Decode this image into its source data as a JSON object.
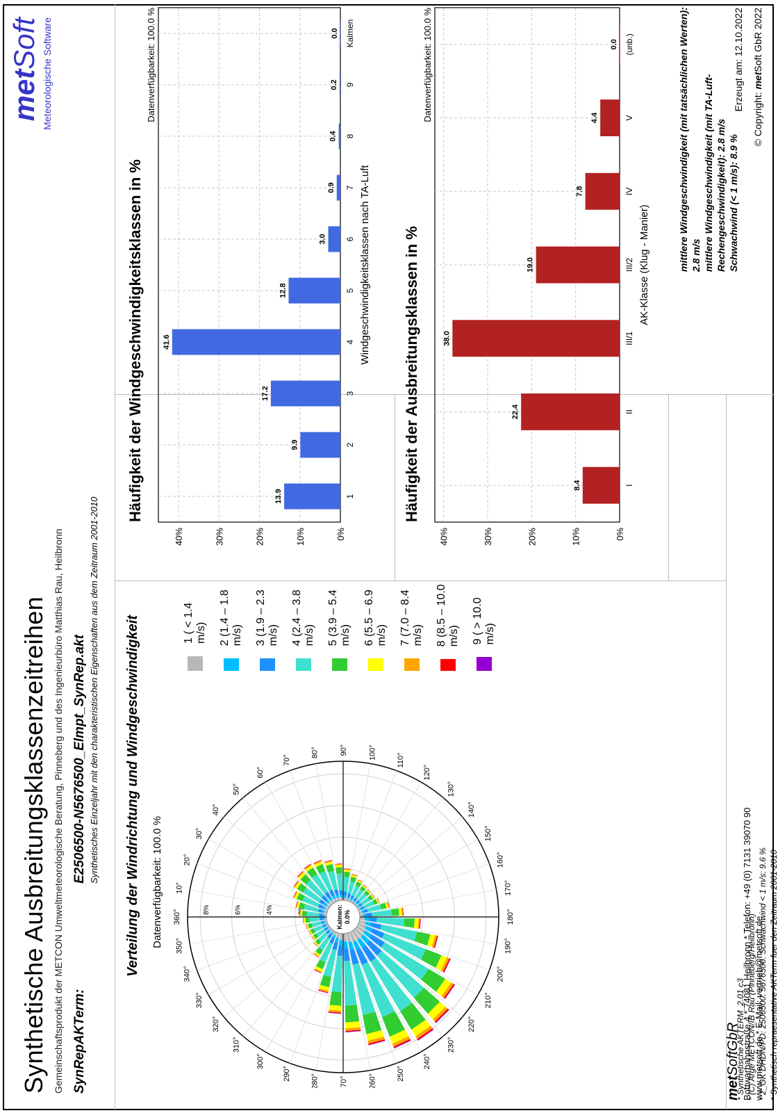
{
  "header": {
    "title": "Synthetische Ausbreitungsklassenzeitreihen",
    "subtitle": "Gemeinschaftsprodukt der METCON Umweltmeteorologische Beratung, Pinneberg und des Ingenieurbüro Matthias Rau, Heilbronn",
    "label": "SynRepAKTerm:",
    "file": "E2506500-N5676500_Elmpt_SynRep.akt",
    "description": "Synthetisches Einzeljahr mit den charakteristischen Eigenschaften aus dem Zeitraum 2001-2010"
  },
  "brand": {
    "met": "met",
    "soft": "Soft",
    "tagline": "Meteorologische Software"
  },
  "rose": {
    "title": "Verteilung der Windrichtung und Windgeschwindigkeit",
    "availability": "Datenverfügbarkeit: 100.0 %",
    "calm": "Kalmen:",
    "calm_value": "0.0%",
    "ring_labels": [
      "2%",
      "4%",
      "6%",
      "8%"
    ],
    "direction_labels": [
      "10°",
      "20°",
      "30°",
      "40°",
      "50°",
      "60°",
      "70°",
      "80°",
      "90°",
      "100°",
      "110°",
      "120°",
      "130°",
      "140°",
      "150°",
      "160°",
      "170°",
      "180°",
      "190°",
      "200°",
      "210°",
      "220°",
      "230°",
      "240°",
      "250°",
      "260°",
      "270°",
      "280°",
      "290°",
      "300°",
      "310°",
      "320°",
      "330°",
      "340°",
      "350°",
      "360°"
    ]
  },
  "legend": [
    {
      "label": "1 ( < 1.4 m/s)",
      "color": "#b8b8b8"
    },
    {
      "label": "2 (1.4 – 1.8 m/s)",
      "color": "#00bfff"
    },
    {
      "label": "3 (1.9 – 2.3 m/s)",
      "color": "#1e90ff"
    },
    {
      "label": "4 (2.4 – 3.8 m/s)",
      "color": "#40e0d0"
    },
    {
      "label": "5 (3.9 – 5.4 m/s)",
      "color": "#32cd32"
    },
    {
      "label": "6 (5.5 – 6.9 m/s)",
      "color": "#ffff00"
    },
    {
      "label": "7 (7.0 – 8.4 m/s)",
      "color": "#ffa500"
    },
    {
      "label": "8 (8.5 – 10.0 m/s)",
      "color": "#ff0000"
    },
    {
      "label": "9 ( > 10.0 m/s)",
      "color": "#9400d3"
    }
  ],
  "notes": [
    "* Synthetische AKTERM_2.01 c3",
    "* (C) Arge METCON/IB Rau (Pinneberg/Heilbronn)",
    "* 2_GK DHDN/PD:  2506500. 5676500.   Schwachwind < 1 m/s:  9.6 %",
    "* Synthetisch repraesentative AKTerm fuer den Zeitraum 2001-2010",
    "+ Anemometerhoehen (0.1 m):  40  43  59  76  100  147  202  247  286"
  ],
  "stats": [
    "mittlere Windgeschwindigkeit (mit tatsächlichen Werten): 2.8 m/s",
    "mittlere Windgeschwindigkeit (mit TA-Luft-Rechengeschwindigkeit): 2.8 m/s",
    "Schwachwind (< 1 m/s): 8.9 %"
  ],
  "footer": {
    "company_met": "met",
    "company_rest": "SoftGbR",
    "address": "Bottwarbahnstraße 4 * 74081 Heilbronn * Telefon: +49 (0) 7131 39070 90",
    "web": "www.metsoft.de * E-Mail: vertrieb@metsoft.de",
    "created": "Erzeugt am: 12.10.2022",
    "copyright_pre": "© Copyright:",
    "copyright_met": "met",
    "copyright_post": "Soft GbR 2022"
  },
  "chart_data": [
    {
      "type": "bar",
      "title": "Häufigkeit der Windgeschwindigkeitsklassen in %",
      "subtitle": "Datenverfügbarkeit: 100.0 %",
      "xlabel": "Windgeschwindigkeitsklassen nach TA-Luft",
      "categories": [
        "1",
        "2",
        "3",
        "4",
        "5",
        "6",
        "7",
        "8",
        "9",
        "Kalmen"
      ],
      "values": [
        13.9,
        9.9,
        17.2,
        41.6,
        12.8,
        3.0,
        0.9,
        0.4,
        0.2,
        0.0
      ],
      "data_labels": [
        "13.9",
        "9.9",
        "17.2",
        "41.6",
        "12.8",
        "3.0",
        "0.9",
        "0.4",
        "0.2",
        "0.0"
      ],
      "yticks": [
        "0%",
        "10%",
        "20%",
        "30%",
        "40%"
      ],
      "ylim": [
        0,
        45
      ],
      "color": "#4169e1"
    },
    {
      "type": "bar",
      "title": "Häufigkeit der Ausbreitungsklassen in %",
      "subtitle": "Datenverfügbarkeit: 100.0 %",
      "xlabel": "AK-Klasse (Klug - Manier)",
      "categories": [
        "I",
        "II",
        "III/1",
        "III/2",
        "IV",
        "V",
        "(unb.)"
      ],
      "values": [
        8.4,
        22.4,
        38.0,
        19.0,
        7.8,
        4.4,
        0.0
      ],
      "data_labels": [
        "8.4",
        "22.4",
        "38.0",
        "19.0",
        "7.8",
        "4.4",
        "0.0"
      ],
      "yticks": [
        "0%",
        "10%",
        "20%",
        "30%",
        "40%"
      ],
      "ylim": [
        0,
        42
      ],
      "color": "#b22222"
    }
  ]
}
